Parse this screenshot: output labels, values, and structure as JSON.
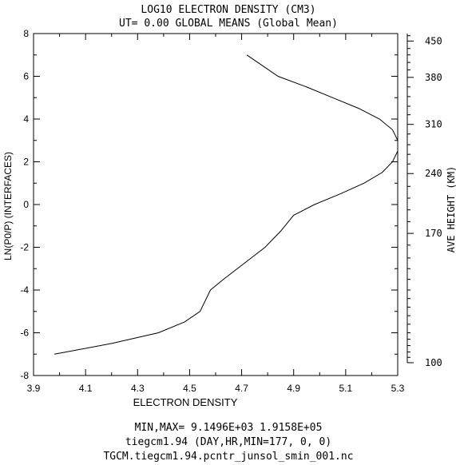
{
  "chart_data": {
    "type": "line",
    "title": "LOG10 ELECTRON DENSITY (CM3)",
    "subtitle": "UT= 0.00 GLOBAL MEANS (Global Mean)",
    "xlabel": "ELECTRON DENSITY",
    "ylabel": "LN(P0/P) (INTERFACES)",
    "y2label": "AVE HEIGHT (KM)",
    "xlim": [
      3.9,
      5.3
    ],
    "ylim": [
      -8,
      8
    ],
    "x_ticks": [
      "3.9",
      "4.1",
      "4.3",
      "4.5",
      "4.7",
      "4.9",
      "5.1",
      "5.3"
    ],
    "y_ticks": [
      "8",
      "6",
      "4",
      "2",
      "0",
      "-2",
      "-4",
      "-6",
      "-8"
    ],
    "y2_ticks": [
      "450",
      "380",
      "310",
      "240",
      "170",
      "100"
    ],
    "grid": false,
    "series": [
      {
        "x": [
          3.98,
          4.2,
          4.38,
          4.48,
          4.54,
          4.58,
          4.63,
          4.71,
          4.79,
          4.85,
          4.9,
          4.98,
          5.08,
          5.17,
          5.24,
          5.28,
          5.3,
          5.3,
          5.28,
          5.23,
          5.15,
          5.05,
          4.95,
          4.84,
          4.72
        ],
        "y": [
          -7.0,
          -6.5,
          -6.0,
          -5.5,
          -5.0,
          -4.0,
          -3.5,
          -2.75,
          -2.0,
          -1.25,
          -0.5,
          0.0,
          0.5,
          1.0,
          1.5,
          2.0,
          2.5,
          3.0,
          3.5,
          4.0,
          4.5,
          5.0,
          5.5,
          6.0,
          7.0
        ]
      }
    ]
  },
  "footer": {
    "minmax": "MIN,MAX=  9.1496E+03  1.9158E+05",
    "model": "tiegcm1.94 (DAY,HR,MIN=177, 0, 0)",
    "file": "TGCM.tiegcm1.94.pcntr_junsol_smin_001.nc"
  }
}
